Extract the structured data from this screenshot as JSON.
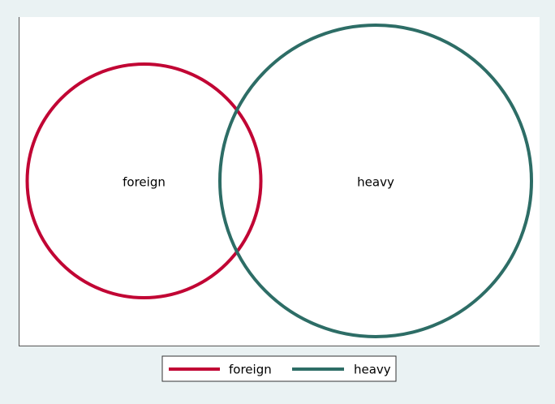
{
  "diagram": {
    "type": "venn",
    "sets": [
      {
        "name": "foreign",
        "color": "#c10534"
      },
      {
        "name": "heavy",
        "color": "#2d6d66"
      }
    ],
    "background_color": "#eaf2f3",
    "plot_background_color": "#ffffff"
  },
  "legend": {
    "position": "bottom",
    "items": [
      {
        "label": "foreign",
        "color": "#c10534"
      },
      {
        "label": "heavy",
        "color": "#2d6d66"
      }
    ]
  }
}
